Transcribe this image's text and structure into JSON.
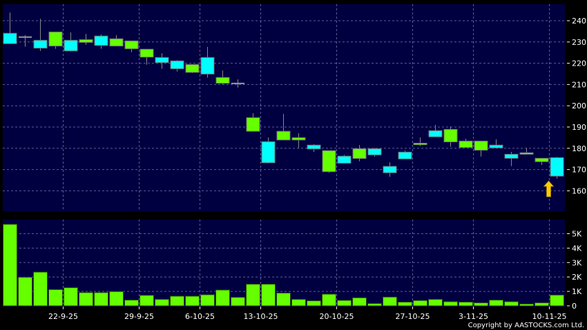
{
  "chart_data": [
    {
      "type": "candlestick",
      "panel": "price",
      "dates": [
        "16-9-25",
        "17-9-25",
        "18-9-25",
        "19-9-25",
        "22-9-25",
        "23-9-25",
        "24-9-25",
        "25-9-25",
        "26-9-25",
        "29-9-25",
        "30-9-25",
        "2-10-25",
        "3-10-25",
        "6-10-25",
        "8-10-25",
        "9-10-25",
        "10-10-25",
        "13-10-25",
        "14-10-25",
        "15-10-25",
        "16-10-25",
        "17-10-25",
        "20-10-25",
        "21-10-25",
        "22-10-25",
        "23-10-25",
        "24-10-25",
        "27-10-25",
        "28-10-25",
        "30-10-25",
        "31-10-25",
        "3-11-25",
        "4-11-25",
        "5-11-25",
        "6-11-25",
        "7-11-25",
        "10-11-25"
      ],
      "ohlc": [
        [
          234.1,
          243.8,
          229.2,
          229.2
        ],
        [
          232.3,
          233.2,
          227.8,
          232.3
        ],
        [
          230.8,
          240.9,
          225.8,
          227.1
        ],
        [
          228.1,
          234.7,
          226.8,
          234.7
        ],
        [
          230.8,
          234.5,
          225.5,
          225.8
        ],
        [
          229.8,
          233.8,
          228.7,
          231.1
        ],
        [
          232.8,
          233.5,
          226.8,
          228.4
        ],
        [
          228.1,
          233.2,
          228.1,
          231.5
        ],
        [
          226.8,
          230.5,
          225.2,
          230.5
        ],
        [
          222.9,
          226.6,
          219.3,
          226.6
        ],
        [
          222.7,
          224.7,
          217.4,
          220.3
        ],
        [
          221.1,
          221.4,
          216.1,
          217.4
        ],
        [
          215.7,
          219.4,
          215.4,
          219.4
        ],
        [
          222.7,
          227.7,
          213.2,
          214.9
        ],
        [
          210.6,
          216.6,
          210.0,
          213.3
        ],
        [
          210.5,
          212.4,
          208.6,
          210.5
        ],
        [
          188.0,
          196.5,
          188.0,
          194.4
        ],
        [
          183.1,
          185.1,
          172.9,
          173.2
        ],
        [
          183.9,
          196.2,
          183.9,
          188.0
        ],
        [
          183.9,
          187.1,
          180.0,
          185.0
        ],
        [
          181.5,
          181.9,
          178.3,
          179.7
        ],
        [
          169.0,
          178.9,
          168.5,
          178.9
        ],
        [
          176.3,
          176.9,
          173.0,
          173.0
        ],
        [
          175.2,
          181.5,
          173.9,
          179.8
        ],
        [
          179.8,
          180.2,
          176.1,
          176.9
        ],
        [
          171.5,
          173.4,
          166.6,
          168.5
        ],
        [
          178.2,
          178.9,
          175.0,
          175.0
        ],
        [
          181.7,
          185.1,
          181.1,
          182.4
        ],
        [
          188.3,
          191.0,
          185.4,
          185.4
        ],
        [
          183.0,
          190.3,
          180.7,
          188.9
        ],
        [
          180.4,
          184.5,
          180.4,
          183.4
        ],
        [
          179.1,
          183.4,
          176.1,
          183.4
        ],
        [
          181.5,
          184.2,
          180.2,
          180.2
        ],
        [
          177.2,
          178.3,
          171.6,
          175.3
        ],
        [
          177.9,
          180.2,
          177.2,
          177.2
        ],
        [
          173.7,
          175.3,
          172.2,
          175.3
        ],
        [
          175.6,
          175.9,
          165.8,
          166.9
        ]
      ],
      "ylim": [
        150,
        248
      ],
      "yticks": [
        "240",
        "230",
        "220",
        "210",
        "200",
        "190",
        "180",
        "170",
        "160"
      ],
      "ytick_values": [
        240,
        230,
        220,
        210,
        200,
        190,
        180,
        170,
        160
      ],
      "grid": true,
      "colors": {
        "up": "#66FF00",
        "down": "#00FFFF",
        "unchanged": "#999999",
        "background": "#000040",
        "grid": "#5A5AA0"
      },
      "annotation": {
        "type": "arrow-up",
        "date": "10-11-25",
        "color": "#FFCC00"
      }
    },
    {
      "type": "bar",
      "panel": "volume",
      "values": [
        5.65,
        1.98,
        2.34,
        1.13,
        1.26,
        0.92,
        0.92,
        0.99,
        0.4,
        0.73,
        0.45,
        0.67,
        0.67,
        0.77,
        1.1,
        0.59,
        1.5,
        1.5,
        0.89,
        0.45,
        0.35,
        0.81,
        0.38,
        0.56,
        0.16,
        0.61,
        0.26,
        0.37,
        0.45,
        0.29,
        0.26,
        0.21,
        0.4,
        0.29,
        0.13,
        0.21,
        0.75
      ],
      "unit": "K",
      "ylim": [
        0,
        5.9
      ],
      "yticks": [
        "5K",
        "4K",
        "3K",
        "2K",
        "1K",
        "0"
      ],
      "ytick_values": [
        5,
        4,
        3,
        2,
        1,
        0
      ],
      "color": "#66FF00"
    }
  ],
  "xaxis": {
    "labels": [
      "22-9-25",
      "29-9-25",
      "6-10-25",
      "13-10-25",
      "20-10-25",
      "27-10-25",
      "3-11-25",
      "10-11-25"
    ]
  },
  "copyright": "Copyright by AASTOCKS.com Ltd."
}
